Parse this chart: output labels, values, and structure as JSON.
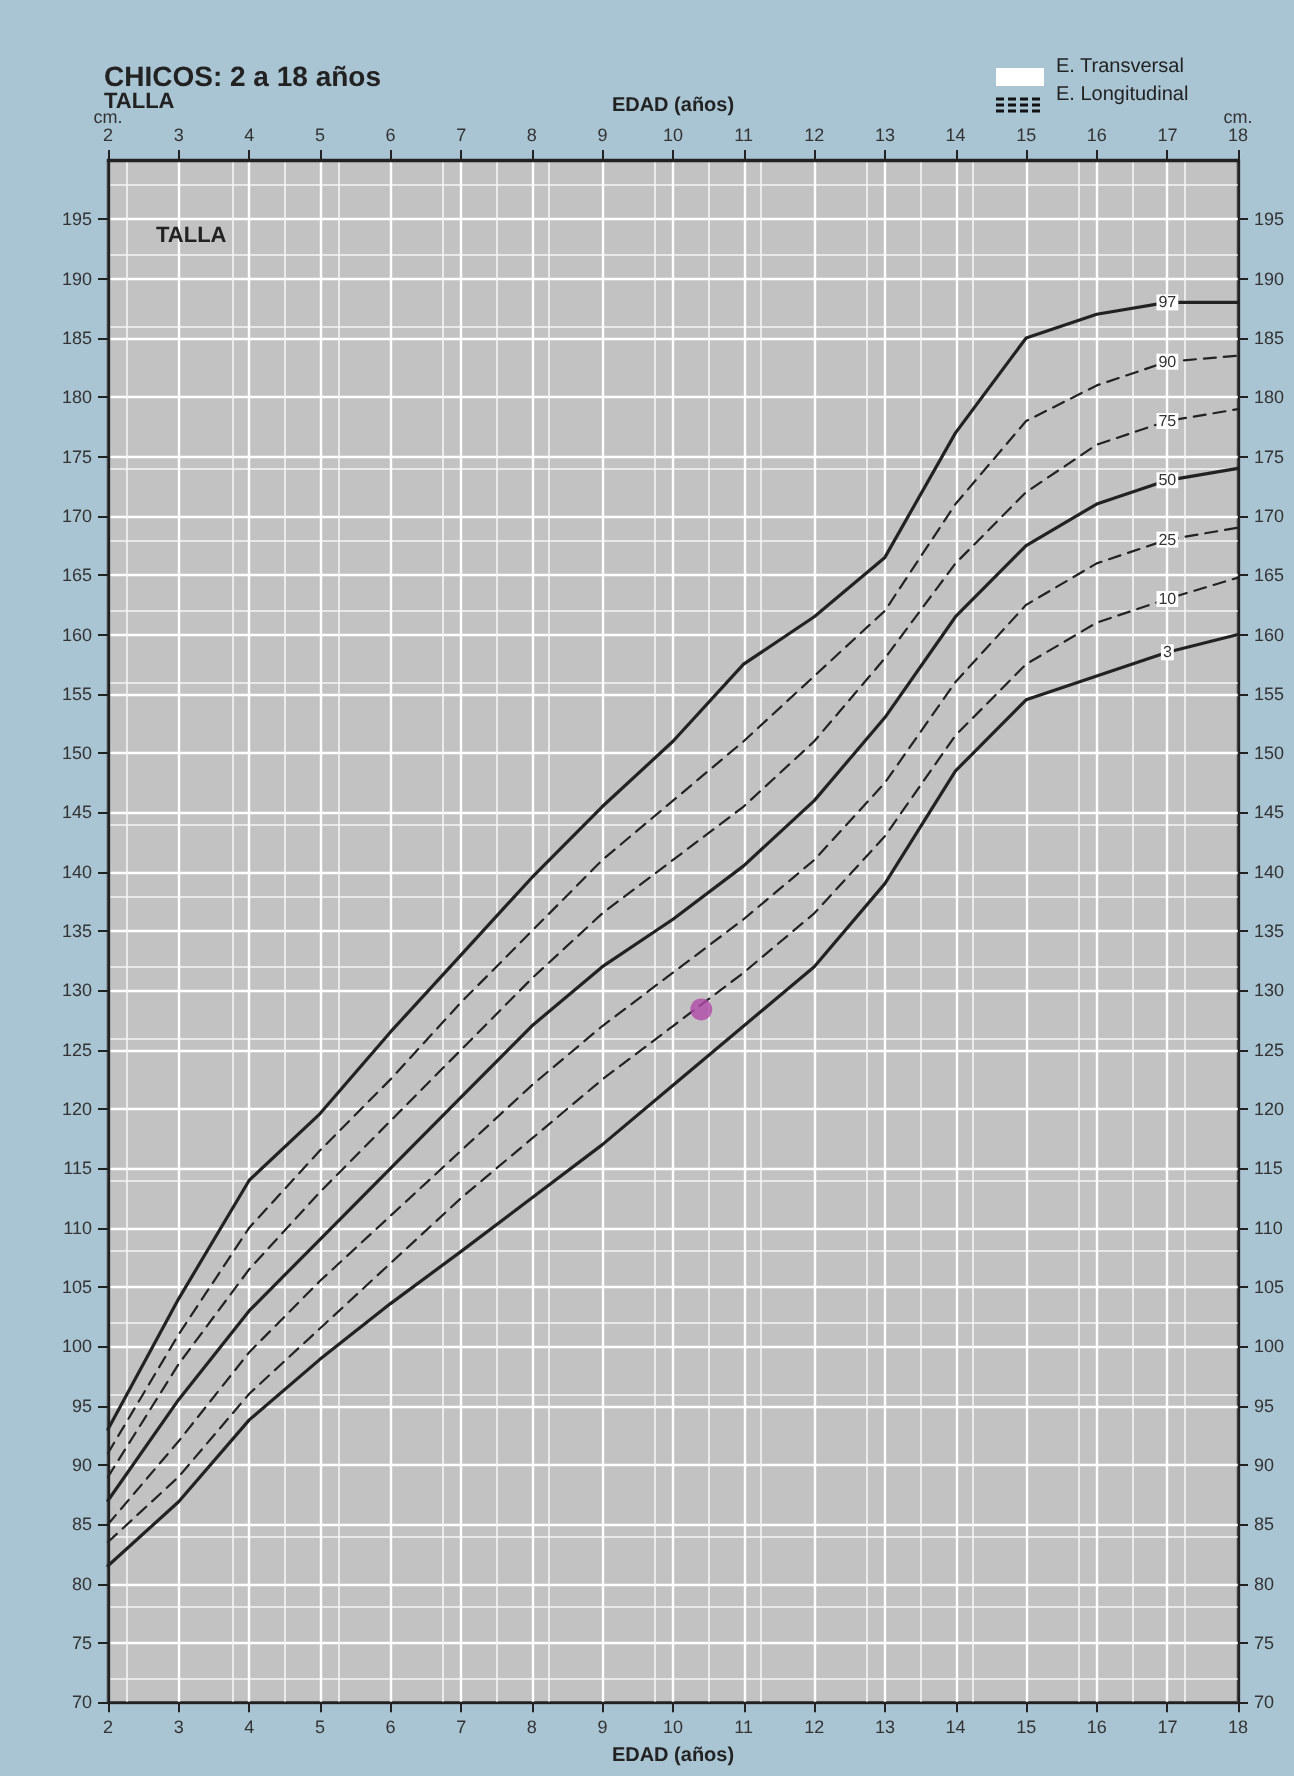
{
  "chart_data": {
    "type": "line",
    "title": "CHICOS: 2 a 18 años",
    "subtitle": "TALLA",
    "xlabel": "EDAD (años)",
    "x2label": "EDAD (años)",
    "ylabel": "cm.",
    "y2label": "cm.",
    "annotations": [
      "TALLA",
      "E. Transversal",
      "E. Longitudinal"
    ],
    "x": [
      2,
      3,
      4,
      5,
      6,
      7,
      8,
      9,
      10,
      11,
      12,
      13,
      14,
      15,
      16,
      17,
      18
    ],
    "series": [
      {
        "name": "97",
        "color": "#222222",
        "line_style": "solid",
        "marker": "none",
        "values": [
          93,
          104,
          114,
          119.6,
          126.5,
          133,
          139.5,
          145.5,
          151,
          157.5,
          161.5,
          166.5,
          177,
          185,
          187,
          188,
          188
        ]
      },
      {
        "name": "90",
        "color": "#222222",
        "line_style": "dashed",
        "marker": "none",
        "values": [
          91,
          101,
          110,
          116.5,
          122.5,
          129,
          135,
          141,
          146,
          151,
          156.5,
          162,
          171,
          178,
          181,
          183,
          183.5
        ]
      },
      {
        "name": "75",
        "color": "#222222",
        "line_style": "dashed",
        "marker": "none",
        "values": [
          89,
          98.5,
          106.5,
          113,
          119,
          125,
          131,
          136.5,
          141,
          145.5,
          151,
          158,
          166,
          172,
          176,
          178,
          179
        ]
      },
      {
        "name": "50",
        "color": "#222222",
        "line_style": "solid",
        "marker": "none",
        "values": [
          87,
          95.5,
          103,
          109,
          115,
          121,
          127,
          132,
          136,
          140.5,
          146,
          153,
          161.5,
          167.5,
          171,
          173,
          174
        ]
      },
      {
        "name": "25",
        "color": "#222222",
        "line_style": "dashed",
        "marker": "none",
        "values": [
          85,
          92,
          99.5,
          105.5,
          111,
          116.5,
          122,
          127,
          131.5,
          136,
          141,
          147.5,
          156,
          162.5,
          166,
          168,
          169
        ]
      },
      {
        "name": "10",
        "color": "#222222",
        "line_style": "dashed",
        "marker": "none",
        "values": [
          83.5,
          89,
          96,
          101.5,
          107,
          112.5,
          117.5,
          122.5,
          127,
          131.5,
          136.5,
          143,
          151.5,
          157.5,
          161,
          163,
          164.8
        ]
      },
      {
        "name": "3",
        "color": "#222222",
        "line_style": "solid",
        "marker": "none",
        "values": [
          81.5,
          86.9,
          93.8,
          98.9,
          103.6,
          108,
          112.5,
          117,
          122,
          127,
          132,
          139,
          148.5,
          154.5,
          156.5,
          158.5,
          160
        ]
      },
      {
        "type": "scatter",
        "color": "#b04aa8",
        "marker": "circle",
        "x": [
          10.4
        ],
        "values": [
          128.4
        ]
      }
    ],
    "xlim": [
      2,
      18
    ],
    "xticks": [
      2,
      3,
      4,
      5,
      6,
      7,
      8,
      9,
      10,
      11,
      12,
      13,
      14,
      15,
      16,
      17,
      18
    ],
    "x2lim": [
      2,
      18
    ],
    "x2ticks": [
      2,
      3,
      4,
      5,
      6,
      7,
      8,
      9,
      10,
      11,
      12,
      13,
      14,
      15,
      16,
      17,
      18
    ],
    "ylim": [
      70,
      200
    ],
    "yticks": [
      70,
      75,
      80,
      85,
      90,
      95,
      100,
      105,
      110,
      115,
      120,
      125,
      130,
      135,
      140,
      145,
      150,
      155,
      160,
      165,
      170,
      175,
      180,
      185,
      190,
      195
    ],
    "y2lim": [
      70,
      200
    ],
    "y2ticks": [
      70,
      75,
      80,
      85,
      90,
      95,
      100,
      105,
      110,
      115,
      120,
      125,
      130,
      135,
      140,
      145,
      150,
      155,
      160,
      165,
      170,
      175,
      180,
      185,
      190,
      195
    ],
    "grid": true
  }
}
